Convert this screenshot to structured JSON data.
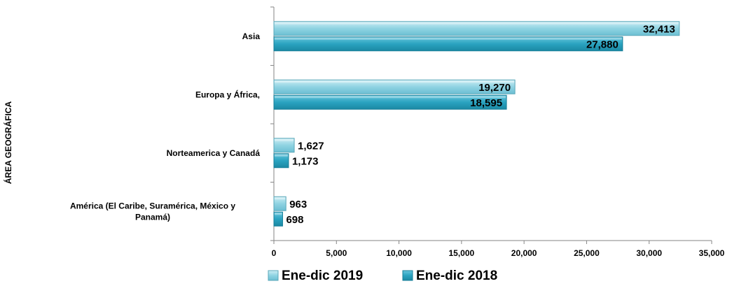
{
  "chart_data": {
    "type": "bar",
    "orientation": "horizontal",
    "ylabel": "ÁREA GEOGRÁFICA",
    "xlabel": "",
    "title": "",
    "categories": [
      "Asia",
      "Europa y  África,",
      "Norteamerica y Canadá",
      "América (El Caribe, Suramérica, México y Panamá)"
    ],
    "category_label_lines": [
      [
        "Asia"
      ],
      [
        "Europa y  África,"
      ],
      [
        "Norteamerica y Canadá"
      ],
      [
        "América (El Caribe, Suramérica, México y",
        "Panamá)"
      ]
    ],
    "series": [
      {
        "name": "Ene-dic 2019",
        "values": [
          32413,
          19270,
          1627,
          963
        ],
        "labels": [
          "32,413",
          "19,270",
          "1,627",
          "963"
        ],
        "color": "#8fd3e2"
      },
      {
        "name": "Ene-dic 2018",
        "values": [
          27880,
          18595,
          1173,
          698
        ],
        "labels": [
          "27,880",
          "18,595",
          "1,173",
          "698"
        ],
        "color": "#2aa3c0"
      }
    ],
    "xlim": [
      0,
      35000
    ],
    "xticks": [
      0,
      5000,
      10000,
      15000,
      20000,
      25000,
      30000,
      35000
    ],
    "xtick_labels": [
      "0",
      "5,000",
      "10,000",
      "15,000",
      "20,000",
      "25,000",
      "30,000",
      "35,000"
    ],
    "grid": false,
    "legend_position": "bottom"
  }
}
